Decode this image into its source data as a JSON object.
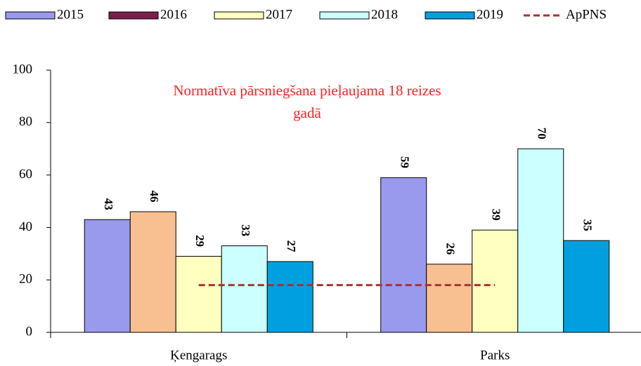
{
  "chart_data": {
    "type": "bar",
    "annotation": [
      "Normatīva pārsniegšana pieļaujama  18 reizes",
      "gadā"
    ],
    "categories": [
      "Ķengarags",
      "Parks"
    ],
    "series": [
      {
        "name": "2015",
        "color": "#9999ee",
        "values": [
          43,
          59
        ]
      },
      {
        "name": "2016",
        "color": "#f8c090",
        "legend_color": "#7a1f4a",
        "values": [
          46,
          26
        ]
      },
      {
        "name": "2017",
        "color": "#ffffc0",
        "values": [
          29,
          39
        ]
      },
      {
        "name": "2018",
        "color": "#ccffff",
        "values": [
          33,
          70
        ]
      },
      {
        "name": "2019",
        "color": "#00a0e0",
        "values": [
          27,
          35
        ]
      },
      {
        "name": "ApPNS",
        "type": "line",
        "color": "#a83232",
        "dashed": true,
        "values": [
          18,
          18
        ]
      }
    ],
    "ylim": [
      0,
      100
    ],
    "yticks": [
      0,
      20,
      40,
      60,
      80,
      100
    ],
    "grid": false
  }
}
